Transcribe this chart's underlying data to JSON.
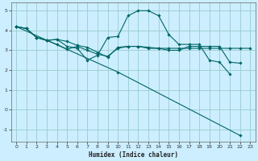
{
  "xlabel": "Humidex (Indice chaleur)",
  "bg_color": "#cceeff",
  "grid_color": "#99cccc",
  "line_color": "#006666",
  "xlim": [
    -0.5,
    23.5
  ],
  "ylim": [
    -1.6,
    5.4
  ],
  "yticks": [
    -1,
    0,
    1,
    2,
    3,
    4,
    5
  ],
  "xticks": [
    0,
    1,
    2,
    3,
    4,
    5,
    6,
    7,
    8,
    9,
    10,
    11,
    12,
    13,
    14,
    15,
    16,
    17,
    18,
    19,
    20,
    21,
    22,
    23
  ],
  "series": [
    {
      "x": [
        0,
        1,
        2,
        3,
        4,
        5,
        6,
        7,
        8,
        9,
        10,
        11,
        12,
        13,
        14,
        15,
        16,
        17,
        18,
        19,
        20,
        21,
        22,
        23
      ],
      "y": [
        4.2,
        4.1,
        3.65,
        3.5,
        3.55,
        3.45,
        3.25,
        3.15,
        2.9,
        2.65,
        3.15,
        3.2,
        3.2,
        3.15,
        3.1,
        3.1,
        3.1,
        3.1,
        3.1,
        3.1,
        3.1,
        3.1,
        3.1,
        3.1
      ]
    },
    {
      "x": [
        0,
        1,
        2,
        3,
        4,
        5,
        6,
        7,
        8,
        9,
        10,
        11,
        12,
        13,
        14,
        15,
        16,
        17,
        18,
        19,
        20,
        21,
        22,
        23
      ],
      "y": [
        4.2,
        4.1,
        3.65,
        3.5,
        3.55,
        3.2,
        3.1,
        2.5,
        2.75,
        3.65,
        3.7,
        4.75,
        5.0,
        5.0,
        4.75,
        3.8,
        3.3,
        3.3,
        3.3,
        2.5,
        2.4,
        1.8,
        null,
        null
      ]
    },
    {
      "x": [
        0,
        1,
        2,
        3,
        4,
        5,
        6,
        7,
        8,
        9,
        10,
        11,
        12,
        13,
        14,
        15,
        16,
        17,
        18,
        19,
        20,
        21,
        22,
        23
      ],
      "y": [
        4.2,
        4.1,
        3.65,
        3.5,
        3.3,
        3.05,
        3.2,
        3.0,
        2.8,
        2.7,
        3.1,
        3.2,
        3.2,
        3.1,
        3.1,
        3.0,
        3.0,
        3.2,
        3.2,
        3.2,
        3.2,
        2.4,
        2.35,
        null
      ]
    },
    {
      "x": [
        0,
        10,
        22,
        23
      ],
      "y": [
        4.2,
        1.9,
        -1.3,
        null
      ]
    }
  ]
}
